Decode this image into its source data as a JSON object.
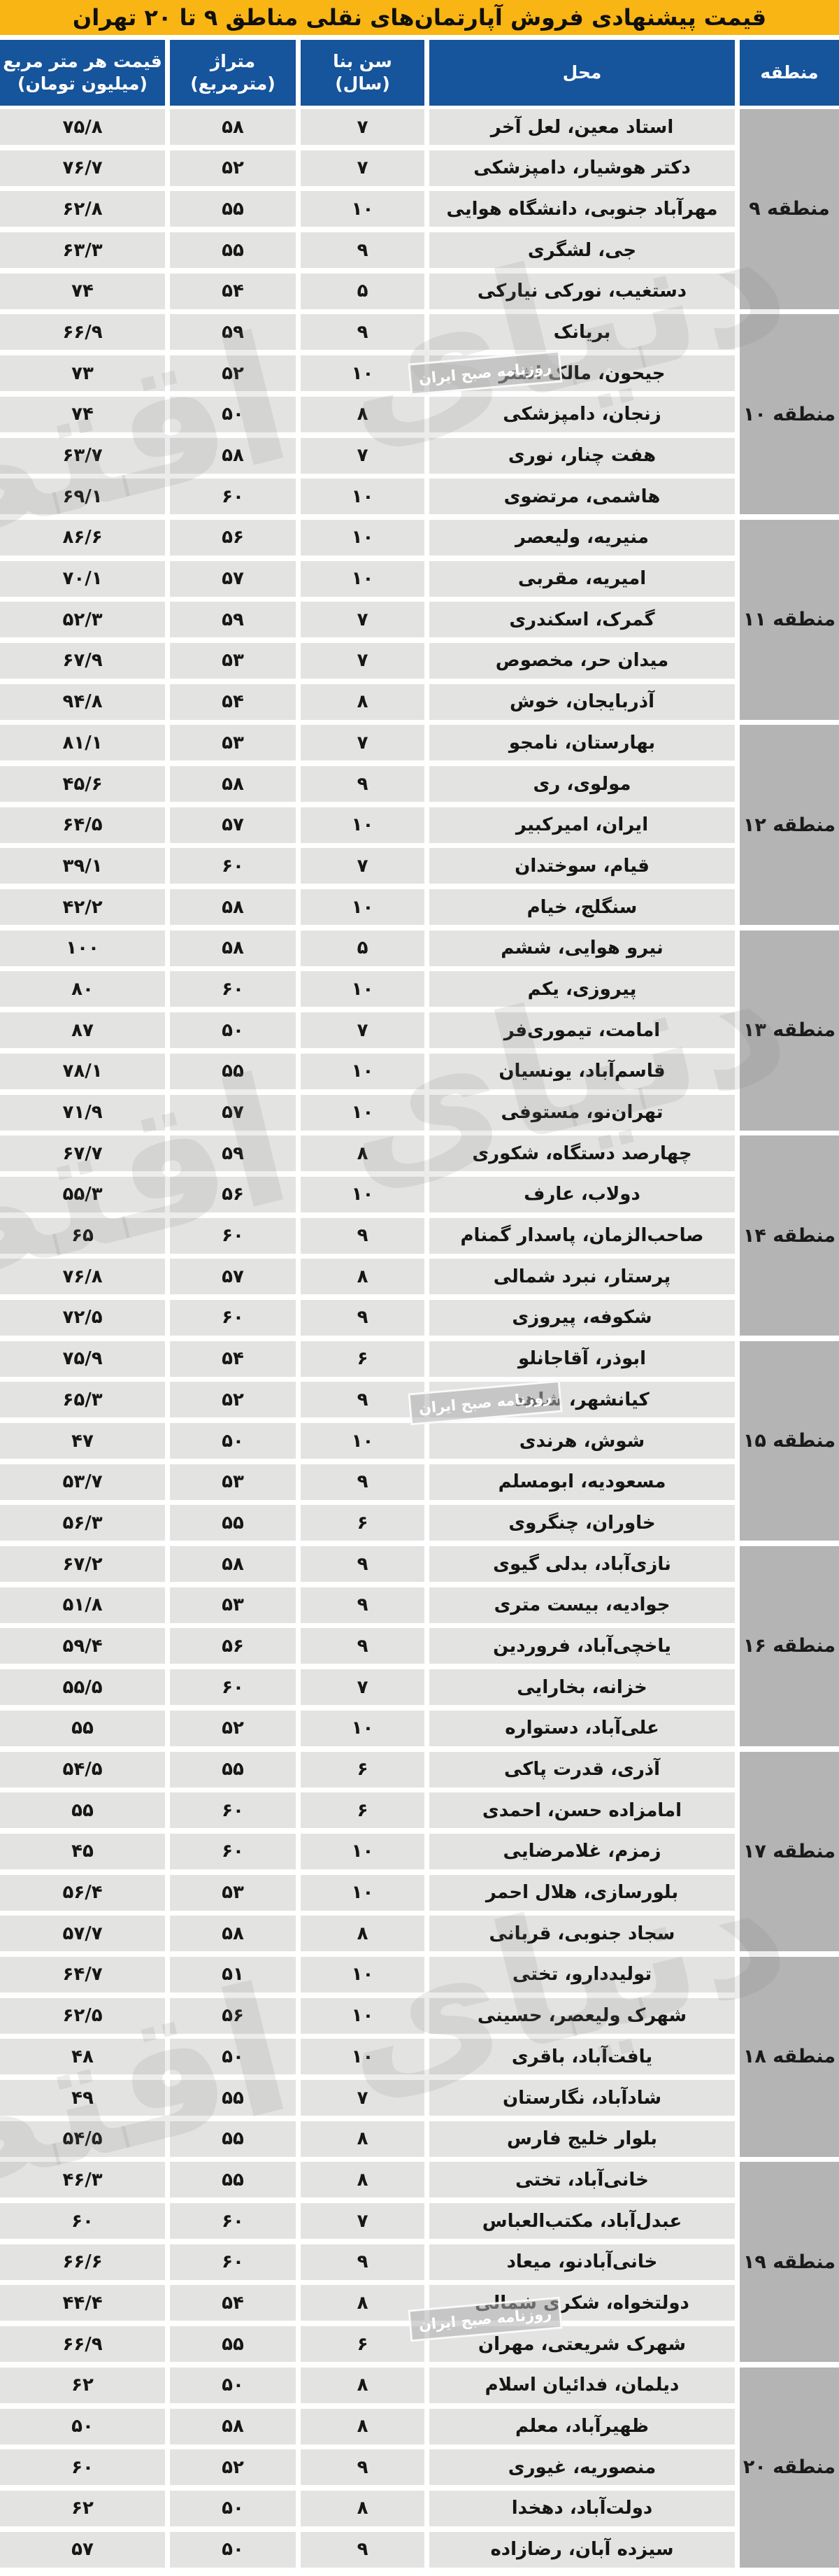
{
  "title": "قیمت پیشنهادی فروش آپارتمان‌های نقلی مناطق ۹ تا ۲۰ تهران",
  "colors": {
    "title_bg": "#f9b514",
    "header_bg": "#16549b",
    "row_bg": "#e3e3e2",
    "district_bg": "#b4b4b4",
    "text": "#141414"
  },
  "columns": {
    "district": {
      "label": "منطقه",
      "sublabel": ""
    },
    "location": {
      "label": "محل",
      "sublabel": ""
    },
    "age": {
      "label": "سن بنا",
      "sublabel": "(سال)"
    },
    "area": {
      "label": "متراژ",
      "sublabel": "(مترمربع)"
    },
    "price": {
      "label": "قیمت هر متر مربع",
      "sublabel": "(میلیون تومان)"
    }
  },
  "watermark": {
    "logo_text": "دنیای اقتصاد",
    "badge_text": "روزنامه صبح ایران"
  },
  "districts": [
    {
      "label": "منطقه ۹",
      "rows": [
        {
          "location": "استاد معین، لعل آخر",
          "age": "۷",
          "area": "۵۸",
          "price": "۷۵/۸"
        },
        {
          "location": "دکتر هوشیار، دامپزشکی",
          "age": "۷",
          "area": "۵۲",
          "price": "۷۶/۷"
        },
        {
          "location": "مهرآباد جنوبی، دانشگاه هوایی",
          "age": "۱۰",
          "area": "۵۵",
          "price": "۶۲/۸"
        },
        {
          "location": "جی، لشگری",
          "age": "۹",
          "area": "۵۵",
          "price": "۶۳/۳"
        },
        {
          "location": "دستغیب، نورکی نیارکی",
          "age": "۵",
          "area": "۵۴",
          "price": "۷۴"
        }
      ]
    },
    {
      "label": "منطقه ۱۰",
      "rows": [
        {
          "location": "بریانک",
          "age": "۹",
          "area": "۵۹",
          "price": "۶۶/۹"
        },
        {
          "location": "جیحون، مالک اشتر",
          "age": "۱۰",
          "area": "۵۲",
          "price": "۷۳"
        },
        {
          "location": "زنجان، دامپزشکی",
          "age": "۸",
          "area": "۵۰",
          "price": "۷۴"
        },
        {
          "location": "هفت چنار، نوری",
          "age": "۷",
          "area": "۵۸",
          "price": "۶۳/۷"
        },
        {
          "location": "هاشمی، مرتضوی",
          "age": "۱۰",
          "area": "۶۰",
          "price": "۶۹/۱"
        }
      ]
    },
    {
      "label": "منطقه ۱۱",
      "rows": [
        {
          "location": "منیریه، ولیعصر",
          "age": "۱۰",
          "area": "۵۶",
          "price": "۸۶/۶"
        },
        {
          "location": "امیریه، مقربی",
          "age": "۱۰",
          "area": "۵۷",
          "price": "۷۰/۱"
        },
        {
          "location": "گمرک، اسکندری",
          "age": "۷",
          "area": "۵۹",
          "price": "۵۲/۳"
        },
        {
          "location": "میدان حر، مخصوص",
          "age": "۷",
          "area": "۵۳",
          "price": "۶۷/۹"
        },
        {
          "location": "آذربایجان، خوش",
          "age": "۸",
          "area": "۵۴",
          "price": "۹۴/۸"
        }
      ]
    },
    {
      "label": "منطقه ۱۲",
      "rows": [
        {
          "location": "بهارستان، نامجو",
          "age": "۷",
          "area": "۵۳",
          "price": "۸۱/۱"
        },
        {
          "location": "مولوی، ری",
          "age": "۹",
          "area": "۵۸",
          "price": "۴۵/۶"
        },
        {
          "location": "ایران، امیرکبیر",
          "age": "۱۰",
          "area": "۵۷",
          "price": "۶۴/۵"
        },
        {
          "location": "قیام، سوختدان",
          "age": "۷",
          "area": "۶۰",
          "price": "۳۹/۱"
        },
        {
          "location": "سنگلج، خیام",
          "age": "۱۰",
          "area": "۵۸",
          "price": "۴۲/۲"
        }
      ]
    },
    {
      "label": "منطقه ۱۳",
      "rows": [
        {
          "location": "نیرو هوایی، ششم",
          "age": "۵",
          "area": "۵۸",
          "price": "۱۰۰"
        },
        {
          "location": "پیروزی، یکم",
          "age": "۱۰",
          "area": "۶۰",
          "price": "۸۰"
        },
        {
          "location": "امامت، تیموری‌فر",
          "age": "۷",
          "area": "۵۰",
          "price": "۸۷"
        },
        {
          "location": "قاسم‌آباد، یونسیان",
          "age": "۱۰",
          "area": "۵۵",
          "price": "۷۸/۱"
        },
        {
          "location": "تهران‌نو، مستوفی",
          "age": "۱۰",
          "area": "۵۷",
          "price": "۷۱/۹"
        }
      ]
    },
    {
      "label": "منطقه ۱۴",
      "rows": [
        {
          "location": "چهارصد دستگاه، شکوری",
          "age": "۸",
          "area": "۵۹",
          "price": "۶۷/۷"
        },
        {
          "location": "دولاب، عارف",
          "age": "۱۰",
          "area": "۵۶",
          "price": "۵۵/۳"
        },
        {
          "location": "صاحب‌الزمان، پاسدار گمنام",
          "age": "۹",
          "area": "۶۰",
          "price": "۶۵"
        },
        {
          "location": "پرستار، نبرد شمالی",
          "age": "۸",
          "area": "۵۷",
          "price": "۷۶/۸"
        },
        {
          "location": "شکوفه، پیروزی",
          "age": "۹",
          "area": "۶۰",
          "price": "۷۲/۵"
        }
      ]
    },
    {
      "label": "منطقه ۱۵",
      "rows": [
        {
          "location": "ابوذر، آقاجانلو",
          "age": "۶",
          "area": "۵۴",
          "price": "۷۵/۹"
        },
        {
          "location": "کیانشهر، شاهد",
          "age": "۹",
          "area": "۵۲",
          "price": "۶۵/۳"
        },
        {
          "location": "شوش، هرندی",
          "age": "۱۰",
          "area": "۵۰",
          "price": "۴۷"
        },
        {
          "location": "مسعودیه، ابومسلم",
          "age": "۹",
          "area": "۵۳",
          "price": "۵۳/۷"
        },
        {
          "location": "خاوران، چنگروی",
          "age": "۶",
          "area": "۵۵",
          "price": "۵۶/۳"
        }
      ]
    },
    {
      "label": "منطقه ۱۶",
      "rows": [
        {
          "location": "نازی‌آباد، بدلی گیوی",
          "age": "۹",
          "area": "۵۸",
          "price": "۶۷/۲"
        },
        {
          "location": "جوادیه، بیست متری",
          "age": "۹",
          "area": "۵۳",
          "price": "۵۱/۸"
        },
        {
          "location": "یاخچی‌آباد، فروردین",
          "age": "۹",
          "area": "۵۶",
          "price": "۵۹/۴"
        },
        {
          "location": "خزانه، بخارایی",
          "age": "۷",
          "area": "۶۰",
          "price": "۵۵/۵"
        },
        {
          "location": "علی‌آباد، دستواره",
          "age": "۱۰",
          "area": "۵۲",
          "price": "۵۵"
        }
      ]
    },
    {
      "label": "منطقه ۱۷",
      "rows": [
        {
          "location": "آذری، قدرت پاکی",
          "age": "۶",
          "area": "۵۵",
          "price": "۵۴/۵"
        },
        {
          "location": "امامزاده حسن، احمدی",
          "age": "۶",
          "area": "۶۰",
          "price": "۵۵"
        },
        {
          "location": "زمزم، غلامرضایی",
          "age": "۱۰",
          "area": "۶۰",
          "price": "۴۵"
        },
        {
          "location": "بلورسازی، هلال احمر",
          "age": "۱۰",
          "area": "۵۳",
          "price": "۵۶/۴"
        },
        {
          "location": "سجاد جنوبی، قربانی",
          "age": "۸",
          "area": "۵۸",
          "price": "۵۷/۷"
        }
      ]
    },
    {
      "label": "منطقه ۱۸",
      "rows": [
        {
          "location": "تولیددارو، تختی",
          "age": "۱۰",
          "area": "۵۱",
          "price": "۶۴/۷"
        },
        {
          "location": "شهرک ولیعصر، حسینی",
          "age": "۱۰",
          "area": "۵۶",
          "price": "۶۲/۵"
        },
        {
          "location": "یافت‌آباد، باقری",
          "age": "۱۰",
          "area": "۵۰",
          "price": "۴۸"
        },
        {
          "location": "شادآباد، نگارستان",
          "age": "۷",
          "area": "۵۵",
          "price": "۴۹"
        },
        {
          "location": "بلوار خلیج فارس",
          "age": "۸",
          "area": "۵۵",
          "price": "۵۴/۵"
        }
      ]
    },
    {
      "label": "منطقه ۱۹",
      "rows": [
        {
          "location": "خانی‌آباد، تختی",
          "age": "۸",
          "area": "۵۵",
          "price": "۴۶/۳"
        },
        {
          "location": "عبدل‌آباد، مکتب‌العباس",
          "age": "۷",
          "area": "۶۰",
          "price": "۶۰"
        },
        {
          "location": "خانی‌آبادنو، میعاد",
          "age": "۹",
          "area": "۶۰",
          "price": "۶۶/۶"
        },
        {
          "location": "دولتخواه، شکری شمالی",
          "age": "۸",
          "area": "۵۴",
          "price": "۴۴/۴"
        },
        {
          "location": "شهرک شریعتی، مهران",
          "age": "۶",
          "area": "۵۵",
          "price": "۶۶/۹"
        }
      ]
    },
    {
      "label": "منطقه ۲۰",
      "rows": [
        {
          "location": "دیلمان، فدائیان اسلام",
          "age": "۸",
          "area": "۵۰",
          "price": "۶۲"
        },
        {
          "location": "ظهیرآباد، معلم",
          "age": "۸",
          "area": "۵۸",
          "price": "۵۰"
        },
        {
          "location": "منصوریه، غیوری",
          "age": "۹",
          "area": "۵۲",
          "price": "۶۰"
        },
        {
          "location": "دولت‌آباد، دهخدا",
          "age": "۸",
          "area": "۵۰",
          "price": "۶۲"
        },
        {
          "location": "سیزده آبان، رضازاده",
          "age": "۹",
          "area": "۵۰",
          "price": "۵۷"
        }
      ]
    }
  ]
}
